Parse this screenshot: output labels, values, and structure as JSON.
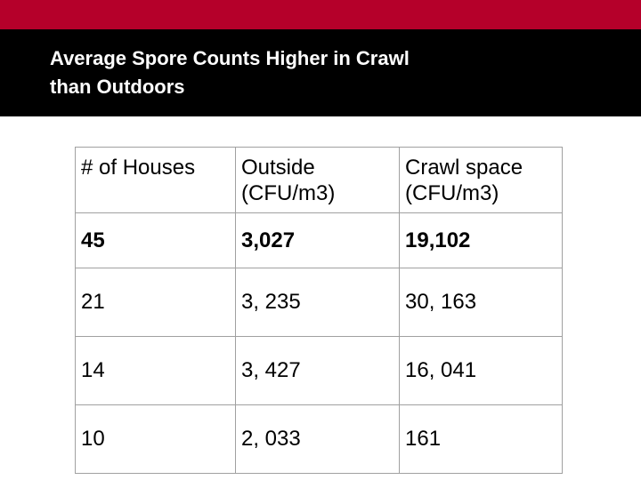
{
  "slide": {
    "title_line1": "Average Spore Counts Higher in Crawl",
    "title_line2": "than Outdoors",
    "colors": {
      "accent_bar": "#b5002a",
      "title_background": "#000000",
      "title_text": "#ffffff"
    }
  },
  "table": {
    "headers": [
      {
        "line1": "# of Houses",
        "line2": ""
      },
      {
        "line1": "Outside",
        "line2": "(CFU/m3)"
      },
      {
        "line1": "Crawl space",
        "line2": "(CFU/m3)"
      }
    ],
    "rows": [
      [
        "45",
        "3,027",
        "19,102"
      ],
      [
        "21",
        "3, 235",
        "30, 163"
      ],
      [
        "14",
        "3, 427",
        "16, 041"
      ],
      [
        "10",
        "2, 033",
        "161"
      ]
    ]
  }
}
